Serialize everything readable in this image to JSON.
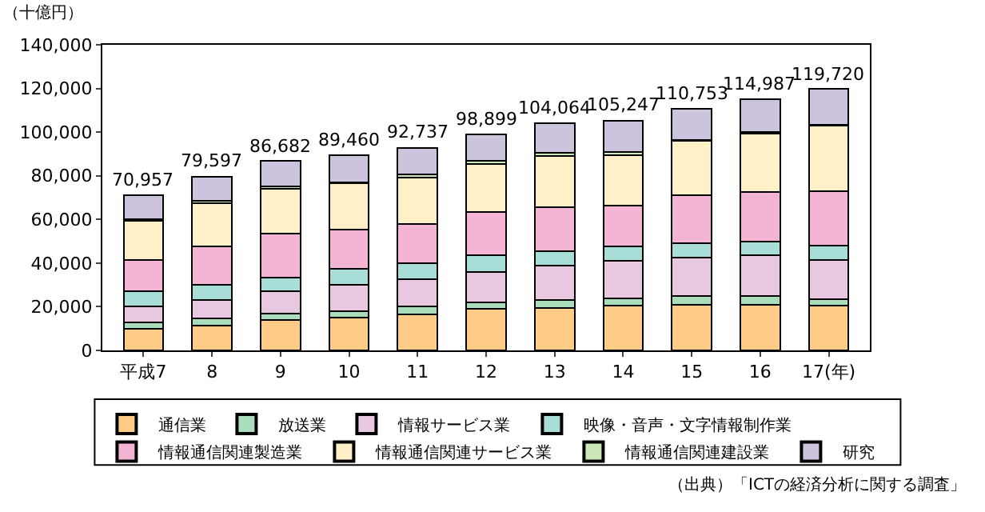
{
  "chart_data": {
    "type": "bar",
    "stacked": true,
    "ylabel": "（十億円）",
    "categories": [
      "平成7",
      "8",
      "9",
      "10",
      "11",
      "12",
      "13",
      "14",
      "15",
      "16",
      "17(年)"
    ],
    "series": [
      {
        "name": "通信業",
        "color": "#ffcc88",
        "values": [
          10000,
          11500,
          14000,
          15000,
          16500,
          19000,
          19500,
          20500,
          21000,
          21000,
          20500
        ]
      },
      {
        "name": "放送業",
        "color": "#aaddbb",
        "values": [
          3000,
          3000,
          3000,
          3000,
          3500,
          3000,
          3500,
          3500,
          4000,
          4000,
          3000
        ]
      },
      {
        "name": "情報サービス業",
        "color": "#e8c8e0",
        "values": [
          7000,
          8500,
          10000,
          12000,
          12500,
          14000,
          16000,
          17000,
          17500,
          18500,
          18000
        ]
      },
      {
        "name": "映像・音声・文字情報制作業",
        "color": "#a8ddd8",
        "values": [
          7000,
          7000,
          6500,
          7500,
          7500,
          7500,
          6500,
          6500,
          6500,
          6500,
          6500
        ]
      },
      {
        "name": "情報通信関連製造業",
        "color": "#f4b4d4",
        "values": [
          14500,
          17500,
          20000,
          18000,
          18000,
          20000,
          20000,
          19000,
          22000,
          22500,
          25000
        ]
      },
      {
        "name": "情報通信関連サービス業",
        "color": "#fff0c8",
        "values": [
          18000,
          20000,
          20500,
          21000,
          21000,
          22000,
          23500,
          23000,
          25000,
          27000,
          30000
        ]
      },
      {
        "name": "情報通信関連建設業",
        "color": "#cce8b8",
        "values": [
          500,
          1000,
          1000,
          500,
          1500,
          1500,
          1500,
          1500,
          500,
          500,
          500
        ]
      },
      {
        "name": "研究",
        "color": "#ccc4dc",
        "values": [
          10957,
          11097,
          11682,
          12460,
          12237,
          11899,
          13564,
          14247,
          14253,
          14987,
          16220
        ]
      }
    ],
    "totals": [
      "70,957",
      "79,597",
      "86,682",
      "89,460",
      "92,737",
      "98,899",
      "104,064",
      "105,247",
      "110,753",
      "114,987",
      "119,720"
    ],
    "ylim": [
      0,
      140000
    ],
    "yticks": [
      {
        "value": 0,
        "label": "0"
      },
      {
        "value": 20000,
        "label": "20,000"
      },
      {
        "value": 40000,
        "label": "40,000"
      },
      {
        "value": 60000,
        "label": "60,000"
      },
      {
        "value": 80000,
        "label": "80,000"
      },
      {
        "value": 100000,
        "label": "100,000"
      },
      {
        "value": 120000,
        "label": "120,000"
      },
      {
        "value": 140000,
        "label": "140,000"
      }
    ],
    "grid": false,
    "legend": "bottom",
    "annotations": [
      "（出典）「ICTの経済分析に関する調査」"
    ]
  }
}
